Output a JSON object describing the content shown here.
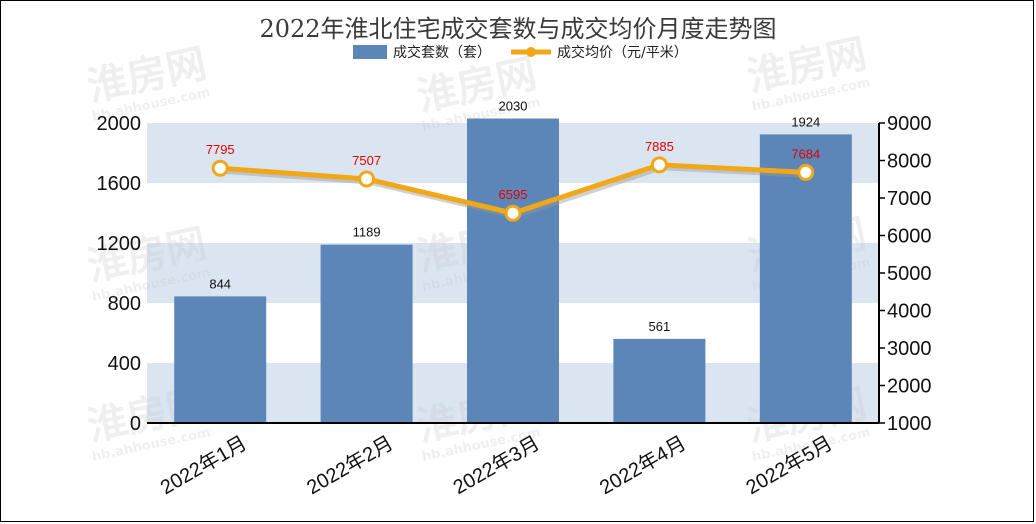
{
  "chart_data": {
    "type": "bar+line",
    "title": "2022年淮北住宅成交套数与成交均价月度走势图",
    "categories": [
      "2022年1月",
      "2022年2月",
      "2022年3月",
      "2022年4月",
      "2022年5月"
    ],
    "series": [
      {
        "name": "成交套数（套）",
        "type": "bar",
        "axis": "left",
        "values": [
          844,
          1189,
          2030,
          561,
          1924
        ],
        "color": "#5b86b7"
      },
      {
        "name": "成交均价（元/平米）",
        "type": "line",
        "axis": "right",
        "values": [
          7795,
          7507,
          6595,
          7885,
          7684
        ],
        "color": "#f0a818"
      }
    ],
    "y_left": {
      "ylim": [
        0,
        2000
      ],
      "ticks": [
        0,
        400,
        800,
        1200,
        1600,
        2000
      ]
    },
    "y_right": {
      "ylim": [
        1000,
        9000
      ],
      "ticks": [
        1000,
        2000,
        3000,
        4000,
        5000,
        6000,
        7000,
        8000,
        9000
      ]
    },
    "legend_position": "top-center",
    "background_bands": "alternating light blue",
    "watermark": {
      "brand": "淮房网",
      "url": "hb.ahhouse.com"
    }
  }
}
